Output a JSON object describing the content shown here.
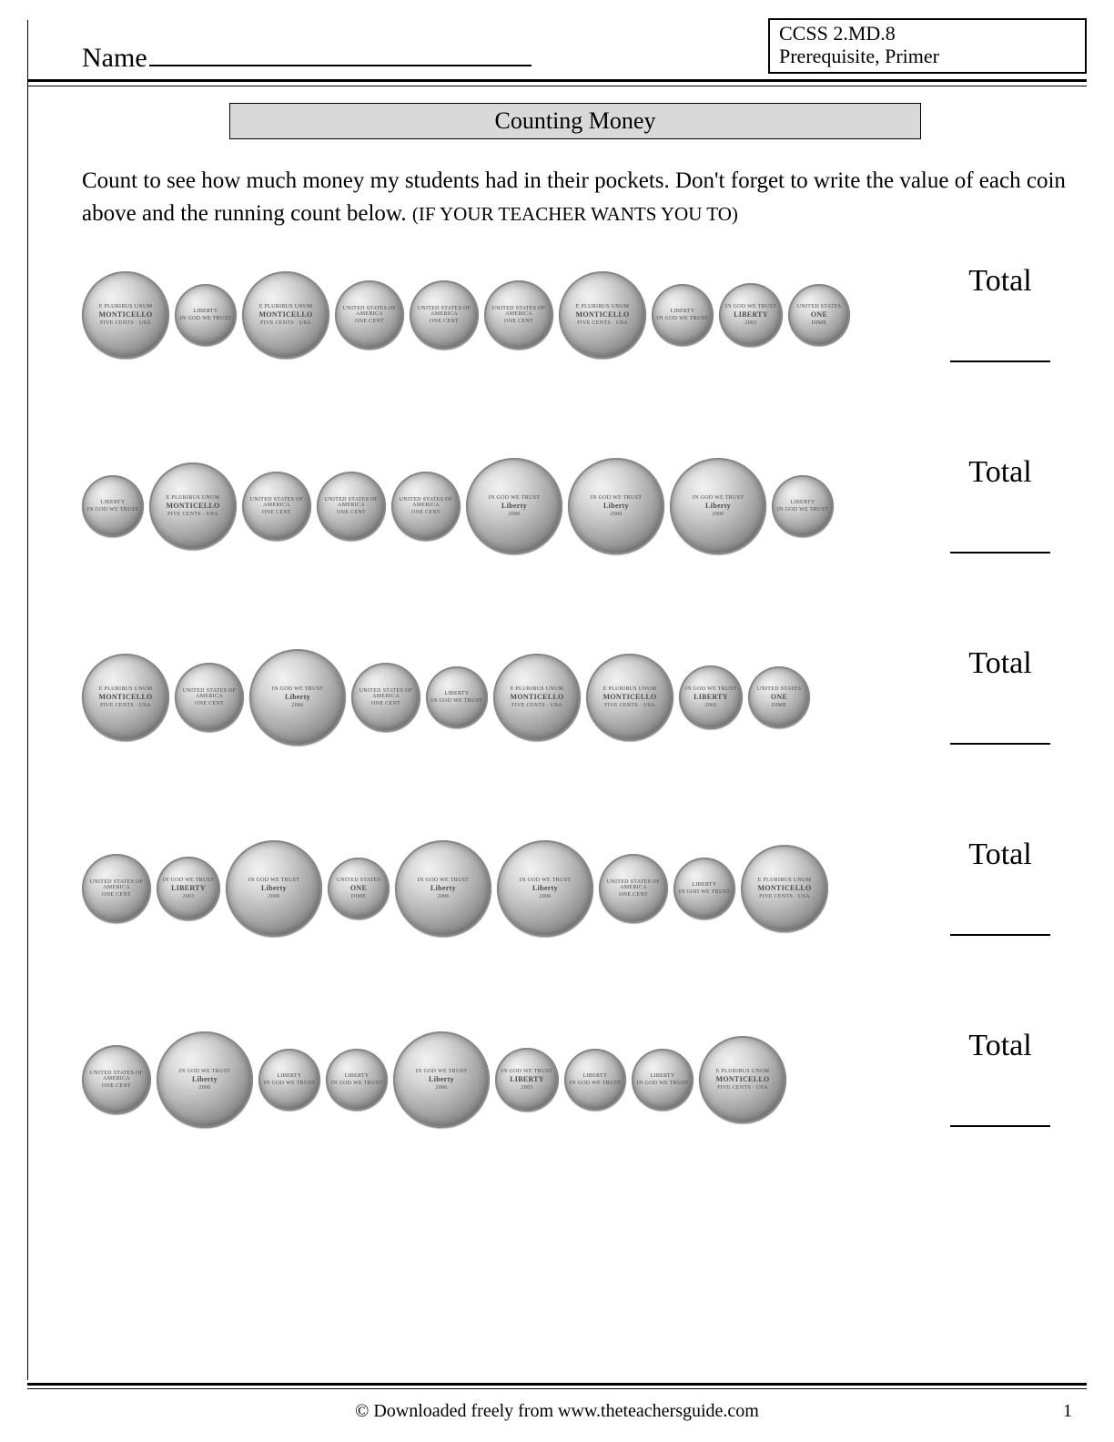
{
  "header": {
    "name_label": "Name",
    "standards_line1": "CCSS  2.MD.8",
    "standards_line2": "Prerequisite, Primer"
  },
  "title": "Counting Money",
  "instructions_main": "Count to see how much money my students had in their pockets.  Don't forget to write the value of each coin above and the running count below. ",
  "instructions_note": "(IF YOUR TEACHER WANTS YOU TO)",
  "total_label": "Total",
  "footer": "© Downloaded freely from www.theteachersguide.com",
  "page_number": "1",
  "coin_types": {
    "nickel_back": {
      "size": "sz-nickel",
      "top": "E PLURIBUS UNUM",
      "mid": "MONTICELLO",
      "bot": "FIVE CENTS · USA"
    },
    "nickel_front": {
      "size": "sz-nickel-lg",
      "top": "IN GOD WE TRUST",
      "mid": "Liberty",
      "bot": "2006"
    },
    "dime_front": {
      "size": "sz-dime",
      "top": "LIBERTY",
      "mid": "",
      "bot": "IN GOD WE TRUST"
    },
    "dime_back": {
      "size": "sz-dime",
      "top": "UNITED STATES",
      "mid": "ONE",
      "bot": "DIME"
    },
    "penny_front": {
      "size": "sz-penny-sm",
      "top": "IN GOD WE TRUST",
      "mid": "LIBERTY",
      "bot": "2003"
    },
    "penny_back": {
      "size": "sz-penny",
      "top": "UNITED STATES OF AMERICA",
      "mid": "",
      "bot": "ONE CENT"
    }
  },
  "rows": [
    {
      "coins": [
        "nickel_back",
        "dime_front",
        "nickel_back",
        "penny_back",
        "penny_back",
        "penny_back",
        "nickel_back",
        "dime_front",
        "penny_front",
        "dime_back"
      ]
    },
    {
      "coins": [
        "dime_front",
        "nickel_back",
        "penny_back",
        "penny_back",
        "penny_back",
        "nickel_front",
        "nickel_front",
        "nickel_front",
        "dime_front"
      ]
    },
    {
      "coins": [
        "nickel_back",
        "penny_back",
        "nickel_front",
        "penny_back",
        "dime_front",
        "nickel_back",
        "nickel_back",
        "penny_front",
        "dime_back"
      ]
    },
    {
      "coins": [
        "penny_back",
        "penny_front",
        "nickel_front",
        "dime_back",
        "nickel_front",
        "nickel_front",
        "penny_back",
        "dime_front",
        "nickel_back"
      ]
    },
    {
      "coins": [
        "penny_back",
        "nickel_front",
        "dime_front",
        "dime_front",
        "nickel_front",
        "penny_front",
        "dime_front",
        "dime_front",
        "nickel_back"
      ]
    }
  ],
  "colors": {
    "background": "#ffffff",
    "text": "#000000",
    "title_bg": "#d9d9d9",
    "coin_light": "#f2f2f2",
    "coin_dark": "#606060"
  }
}
